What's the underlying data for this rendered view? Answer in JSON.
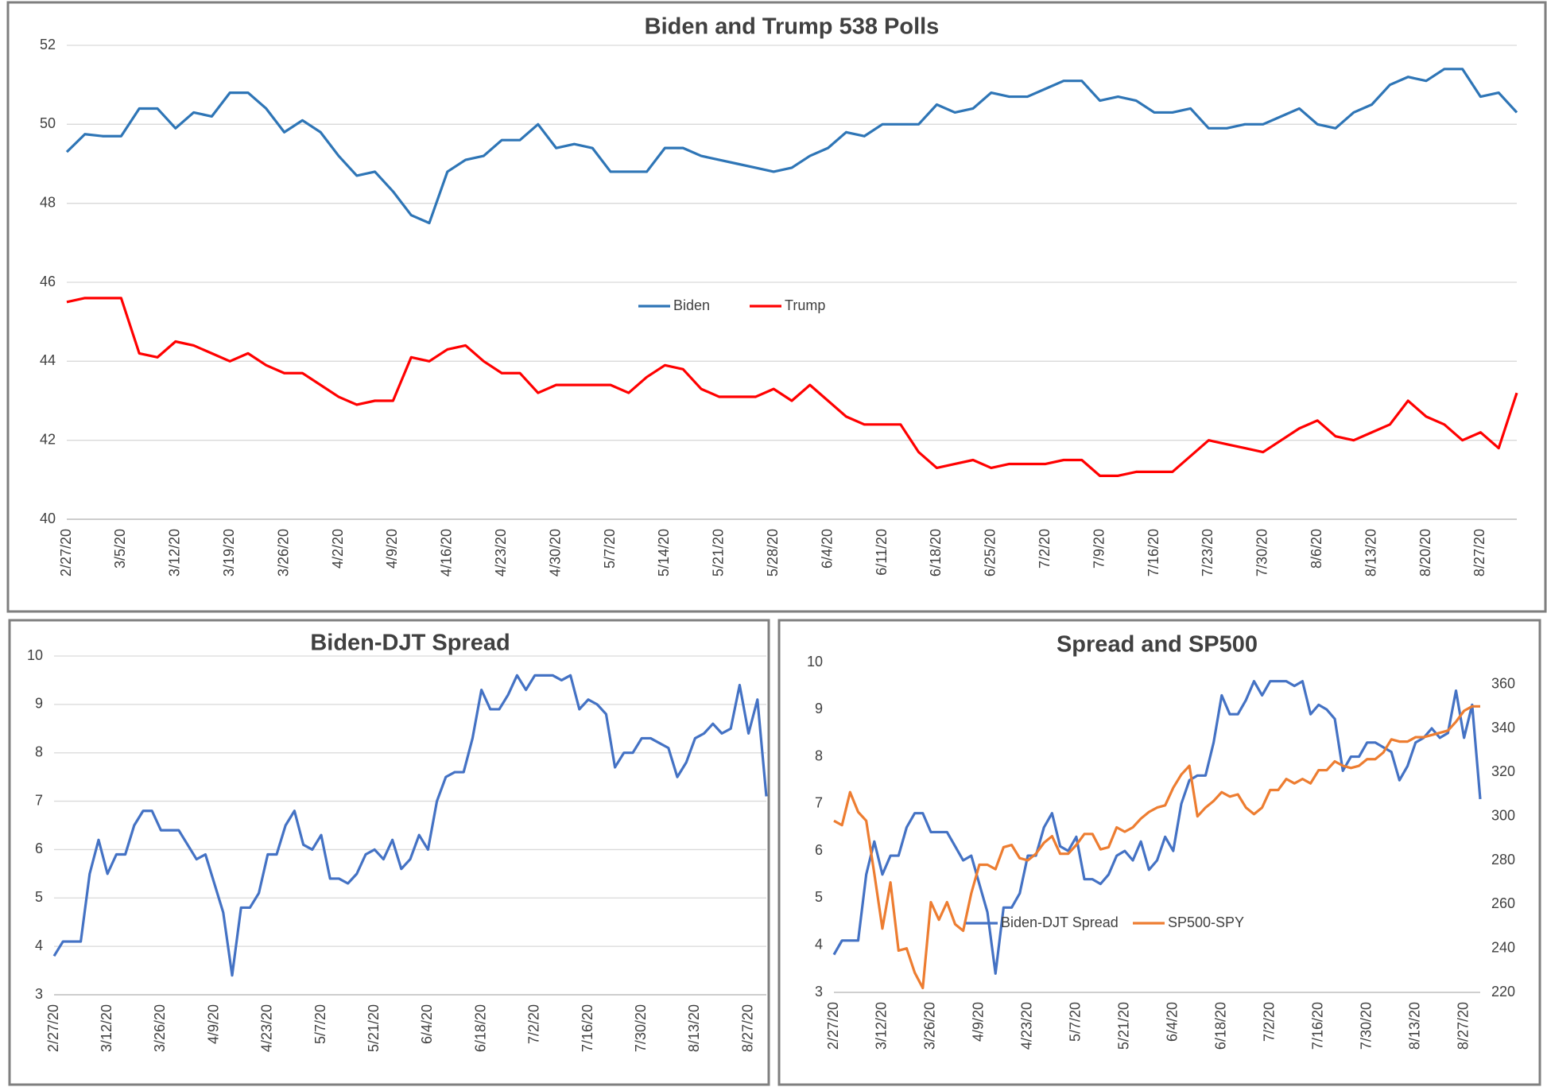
{
  "chart_data": [
    {
      "type": "line",
      "title": "Biden and Trump 538 Polls",
      "legend": "center",
      "grid": true,
      "ylim": [
        40,
        52
      ],
      "yticks": [
        40,
        42,
        44,
        46,
        48,
        50,
        52
      ],
      "categories": [
        "2/27/20",
        null,
        null,
        "3/5/20",
        null,
        null,
        "3/12/20",
        null,
        null,
        "3/19/20",
        null,
        null,
        "3/26/20",
        null,
        null,
        "4/2/20",
        null,
        null,
        "4/9/20",
        null,
        null,
        "4/16/20",
        null,
        null,
        "4/23/20",
        null,
        null,
        "4/30/20",
        null,
        null,
        "5/7/20",
        null,
        null,
        "5/14/20",
        null,
        null,
        "5/21/20",
        null,
        null,
        "5/28/20",
        null,
        null,
        "6/4/20",
        null,
        null,
        "6/11/20",
        null,
        null,
        "6/18/20",
        null,
        null,
        "6/25/20",
        null,
        null,
        "7/2/20",
        null,
        null,
        "7/9/20",
        null,
        null,
        "7/16/20",
        null,
        null,
        "7/23/20",
        null,
        null,
        "7/30/20",
        null,
        null,
        "8/6/20",
        null,
        null,
        "8/13/20",
        null,
        null,
        "8/20/20",
        null,
        null,
        "8/27/20",
        null,
        null
      ],
      "series": [
        {
          "name": "Biden",
          "color": "#2e75b6",
          "values": [
            49.3,
            49.75,
            49.7,
            49.7,
            50.4,
            50.4,
            49.9,
            50.3,
            50.2,
            50.8,
            50.8,
            50.4,
            49.8,
            50.1,
            49.8,
            49.2,
            48.7,
            48.8,
            48.3,
            47.7,
            47.5,
            48.8,
            49.1,
            49.2,
            49.6,
            49.6,
            50.0,
            49.4,
            49.5,
            49.4,
            48.8,
            48.8,
            48.8,
            49.4,
            49.4,
            49.2,
            49.1,
            49.0,
            48.9,
            48.8,
            48.9,
            49.2,
            49.4,
            49.8,
            49.7,
            50.0,
            50.0,
            50.0,
            50.5,
            50.3,
            50.4,
            50.8,
            50.7,
            50.7,
            50.9,
            51.1,
            51.1,
            50.6,
            50.7,
            50.6,
            50.3,
            50.3,
            50.4,
            49.9,
            49.9,
            50.0,
            50.0,
            50.2,
            50.4,
            50.0,
            49.9,
            50.3,
            50.5,
            51.0,
            51.2,
            51.1,
            51.4,
            51.4,
            50.7,
            50.8,
            50.3
          ]
        },
        {
          "name": "Trump",
          "color": "#ff0000",
          "values": [
            45.5,
            45.6,
            45.6,
            45.6,
            44.2,
            44.1,
            44.5,
            44.4,
            44.2,
            44.0,
            44.2,
            43.9,
            43.7,
            43.7,
            43.4,
            43.1,
            42.9,
            43.0,
            43.0,
            44.1,
            44.0,
            44.3,
            44.4,
            44.0,
            43.7,
            43.7,
            43.2,
            43.4,
            43.4,
            43.4,
            43.4,
            43.2,
            43.6,
            43.9,
            43.8,
            43.3,
            43.1,
            43.1,
            43.1,
            43.3,
            43.0,
            43.4,
            43.0,
            42.6,
            42.4,
            42.4,
            42.4,
            41.7,
            41.3,
            41.4,
            41.5,
            41.3,
            41.4,
            41.4,
            41.4,
            41.5,
            41.5,
            41.1,
            41.1,
            41.2,
            41.2,
            41.2,
            41.6,
            42.0,
            41.9,
            41.8,
            41.7,
            42.0,
            42.3,
            42.5,
            42.1,
            42.0,
            42.2,
            42.4,
            43.0,
            42.6,
            42.4,
            42.0,
            42.2,
            41.8,
            43.2
          ]
        }
      ]
    },
    {
      "type": "line",
      "title": "Biden-DJT Spread",
      "grid": true,
      "ylim": [
        3,
        10
      ],
      "yticks": [
        3,
        4,
        5,
        6,
        7,
        8,
        9,
        10
      ],
      "categories": [
        "2/27/20",
        null,
        null,
        null,
        null,
        null,
        "3/12/20",
        null,
        null,
        null,
        null,
        null,
        "3/26/20",
        null,
        null,
        null,
        null,
        null,
        "4/9/20",
        null,
        null,
        null,
        null,
        null,
        "4/23/20",
        null,
        null,
        null,
        null,
        null,
        "5/7/20",
        null,
        null,
        null,
        null,
        null,
        "5/21/20",
        null,
        null,
        null,
        null,
        null,
        "6/4/20",
        null,
        null,
        null,
        null,
        null,
        "6/18/20",
        null,
        null,
        null,
        null,
        null,
        "7/2/20",
        null,
        null,
        null,
        null,
        null,
        "7/16/20",
        null,
        null,
        null,
        null,
        null,
        "7/30/20",
        null,
        null,
        null,
        null,
        null,
        "8/13/20",
        null,
        null,
        null,
        null,
        null,
        "8/27/20",
        null,
        null
      ],
      "series": [
        {
          "color": "#4472c4",
          "values": [
            3.8,
            4.1,
            4.1,
            4.1,
            5.5,
            6.2,
            5.5,
            5.9,
            5.9,
            6.5,
            6.8,
            6.8,
            6.4,
            6.4,
            6.4,
            6.1,
            5.8,
            5.9,
            5.3,
            4.7,
            3.4,
            4.8,
            4.8,
            5.1,
            5.9,
            5.9,
            6.5,
            6.8,
            6.1,
            6.0,
            6.3,
            5.4,
            5.4,
            5.3,
            5.5,
            5.9,
            6.0,
            5.8,
            6.2,
            5.6,
            5.8,
            6.3,
            6.0,
            7.0,
            7.5,
            7.6,
            7.6,
            8.3,
            9.3,
            8.9,
            8.9,
            9.2,
            9.6,
            9.3,
            9.6,
            9.6,
            9.6,
            9.5,
            9.6,
            8.9,
            9.1,
            9.0,
            8.8,
            7.7,
            8.0,
            8.0,
            8.3,
            8.3,
            8.2,
            8.1,
            7.5,
            7.8,
            8.3,
            8.4,
            8.6,
            8.4,
            8.5,
            9.4,
            8.4,
            9.1,
            7.1
          ]
        }
      ]
    },
    {
      "type": "line",
      "title": "Spread and SP500",
      "legend": "lower right",
      "grid": false,
      "ylim": [
        3,
        10
      ],
      "yticks": [
        3,
        4,
        5,
        6,
        7,
        8,
        9,
        10
      ],
      "y2lim": [
        220,
        370
      ],
      "y2ticks": [
        220,
        240,
        260,
        280,
        300,
        320,
        340,
        360
      ],
      "categories": [
        "2/27/20",
        null,
        null,
        null,
        null,
        null,
        "3/12/20",
        null,
        null,
        null,
        null,
        null,
        "3/26/20",
        null,
        null,
        null,
        null,
        null,
        "4/9/20",
        null,
        null,
        null,
        null,
        null,
        "4/23/20",
        null,
        null,
        null,
        null,
        null,
        "5/7/20",
        null,
        null,
        null,
        null,
        null,
        "5/21/20",
        null,
        null,
        null,
        null,
        null,
        "6/4/20",
        null,
        null,
        null,
        null,
        null,
        "6/18/20",
        null,
        null,
        null,
        null,
        null,
        "7/2/20",
        null,
        null,
        null,
        null,
        null,
        "7/16/20",
        null,
        null,
        null,
        null,
        null,
        "7/30/20",
        null,
        null,
        null,
        null,
        null,
        "8/13/20",
        null,
        null,
        null,
        null,
        null,
        "8/27/20",
        null,
        null
      ],
      "series": [
        {
          "name": "Biden-DJT Spread",
          "color": "#4472c4",
          "values": [
            3.8,
            4.1,
            4.1,
            4.1,
            5.5,
            6.2,
            5.5,
            5.9,
            5.9,
            6.5,
            6.8,
            6.8,
            6.4,
            6.4,
            6.4,
            6.1,
            5.8,
            5.9,
            5.3,
            4.7,
            3.4,
            4.8,
            4.8,
            5.1,
            5.9,
            5.9,
            6.5,
            6.8,
            6.1,
            6.0,
            6.3,
            5.4,
            5.4,
            5.3,
            5.5,
            5.9,
            6.0,
            5.8,
            6.2,
            5.6,
            5.8,
            6.3,
            6.0,
            7.0,
            7.5,
            7.6,
            7.6,
            8.3,
            9.3,
            8.9,
            8.9,
            9.2,
            9.6,
            9.3,
            9.6,
            9.6,
            9.6,
            9.5,
            9.6,
            8.9,
            9.1,
            9.0,
            8.8,
            7.7,
            8.0,
            8.0,
            8.3,
            8.3,
            8.2,
            8.1,
            7.5,
            7.8,
            8.3,
            8.4,
            8.6,
            8.4,
            8.5,
            9.4,
            8.4,
            9.1,
            7.1
          ]
        },
        {
          "name": "SP500-SPY",
          "color": "#ed7d31",
          "axis": "y2",
          "values": [
            298,
            296,
            311,
            302,
            298,
            274,
            249,
            270,
            239,
            240,
            229,
            222,
            261,
            253,
            261,
            251,
            248,
            265,
            278,
            278,
            276,
            286,
            287,
            281,
            280,
            283,
            288,
            291,
            283,
            283,
            287,
            292,
            292,
            285,
            286,
            295,
            293,
            295,
            299,
            302,
            304,
            305,
            313,
            319,
            323,
            300,
            304,
            307,
            311,
            309,
            310,
            304,
            301,
            304,
            312,
            312,
            317,
            315,
            317,
            315,
            321,
            321,
            325,
            323,
            322,
            323,
            326,
            326,
            329,
            335,
            334,
            334,
            336,
            336,
            337,
            338,
            339,
            343,
            348,
            350,
            350
          ]
        }
      ]
    }
  ]
}
